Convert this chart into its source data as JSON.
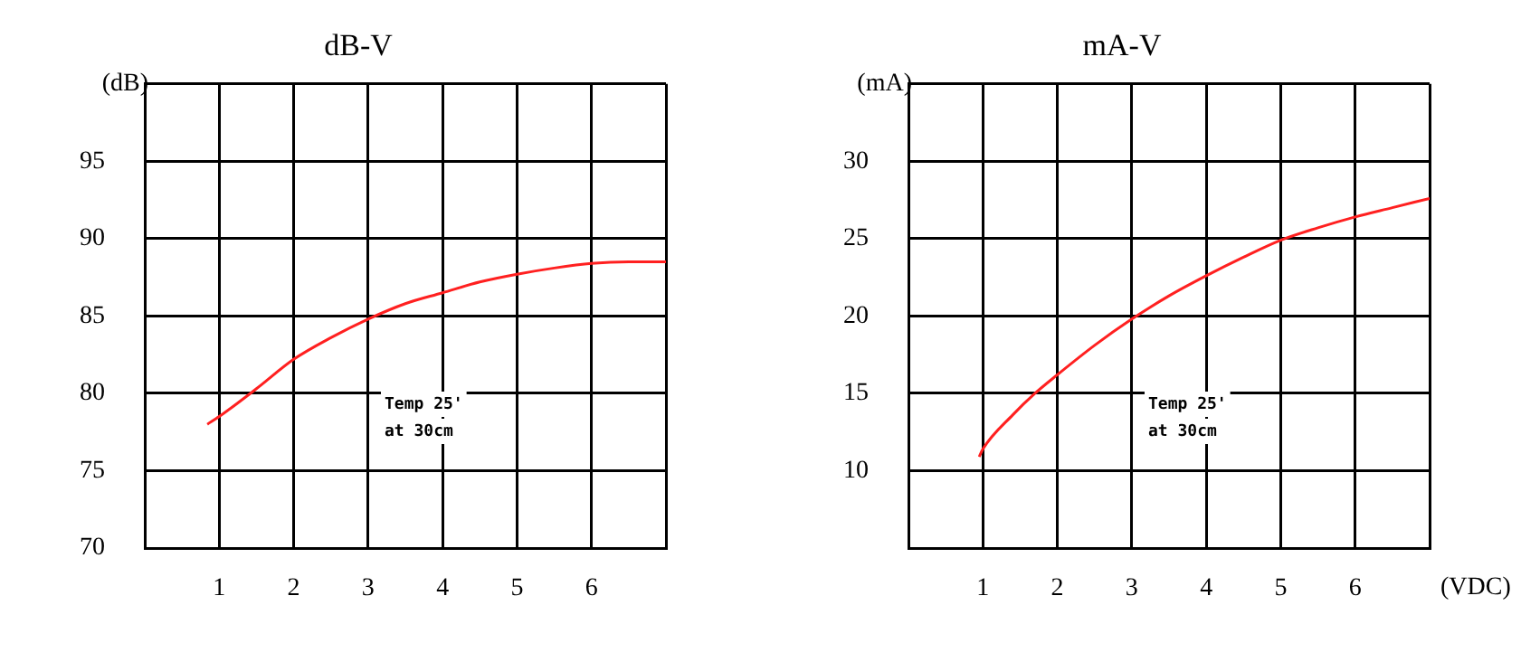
{
  "chart_data": [
    {
      "type": "line",
      "title": "dB-V",
      "ylabel": "(dB)",
      "x": [
        0.84,
        1,
        1.5,
        2,
        2.5,
        3,
        3.5,
        4,
        4.5,
        5,
        5.5,
        6,
        6.5,
        7
      ],
      "series": [
        {
          "color": "#ff2020",
          "values": [
            78,
            78.5,
            80.3,
            82.2,
            83.6,
            84.8,
            85.8,
            86.5,
            87.2,
            87.7,
            88.1,
            88.4,
            88.5,
            88.5
          ]
        }
      ],
      "xlim": [
        0,
        7
      ],
      "xticks": [
        1,
        2,
        3,
        4,
        5,
        6,
        {
          "value": 7,
          "label": null
        }
      ],
      "ylim": [
        70,
        100
      ],
      "yticks": [
        70,
        75,
        80,
        85,
        90,
        95,
        {
          "value": 100,
          "label": null
        }
      ],
      "grid": true,
      "legend": false,
      "marker": "none",
      "line_style": "solid",
      "annotations": [
        "Temp 25'",
        "at 30cm"
      ]
    },
    {
      "type": "line",
      "title": "mA-V",
      "ylabel": "(mA)",
      "xlabel": "(VDC)",
      "x": [
        0.95,
        1,
        1.4,
        1.7,
        2,
        2.5,
        3,
        3.5,
        4,
        4.5,
        5,
        5.5,
        6,
        6.5,
        7
      ],
      "series": [
        {
          "color": "#ff2020",
          "values": [
            10.9,
            11.4,
            13.6,
            15,
            16.2,
            18.1,
            19.8,
            21.3,
            22.6,
            23.8,
            24.9,
            25.7,
            26.4,
            27,
            27.6
          ]
        }
      ],
      "xlim": [
        0,
        7
      ],
      "xticks": [
        1,
        2,
        3,
        4,
        5,
        6,
        {
          "value": 7,
          "label": null
        }
      ],
      "ylim": [
        5,
        35
      ],
      "yticks": [
        10,
        15,
        20,
        25,
        30,
        {
          "value": 35,
          "label": null
        }
      ],
      "grid": true,
      "legend": false,
      "marker": "none",
      "line_style": "solid",
      "annotations": [
        "Temp 25'",
        "at 30cm"
      ]
    }
  ]
}
